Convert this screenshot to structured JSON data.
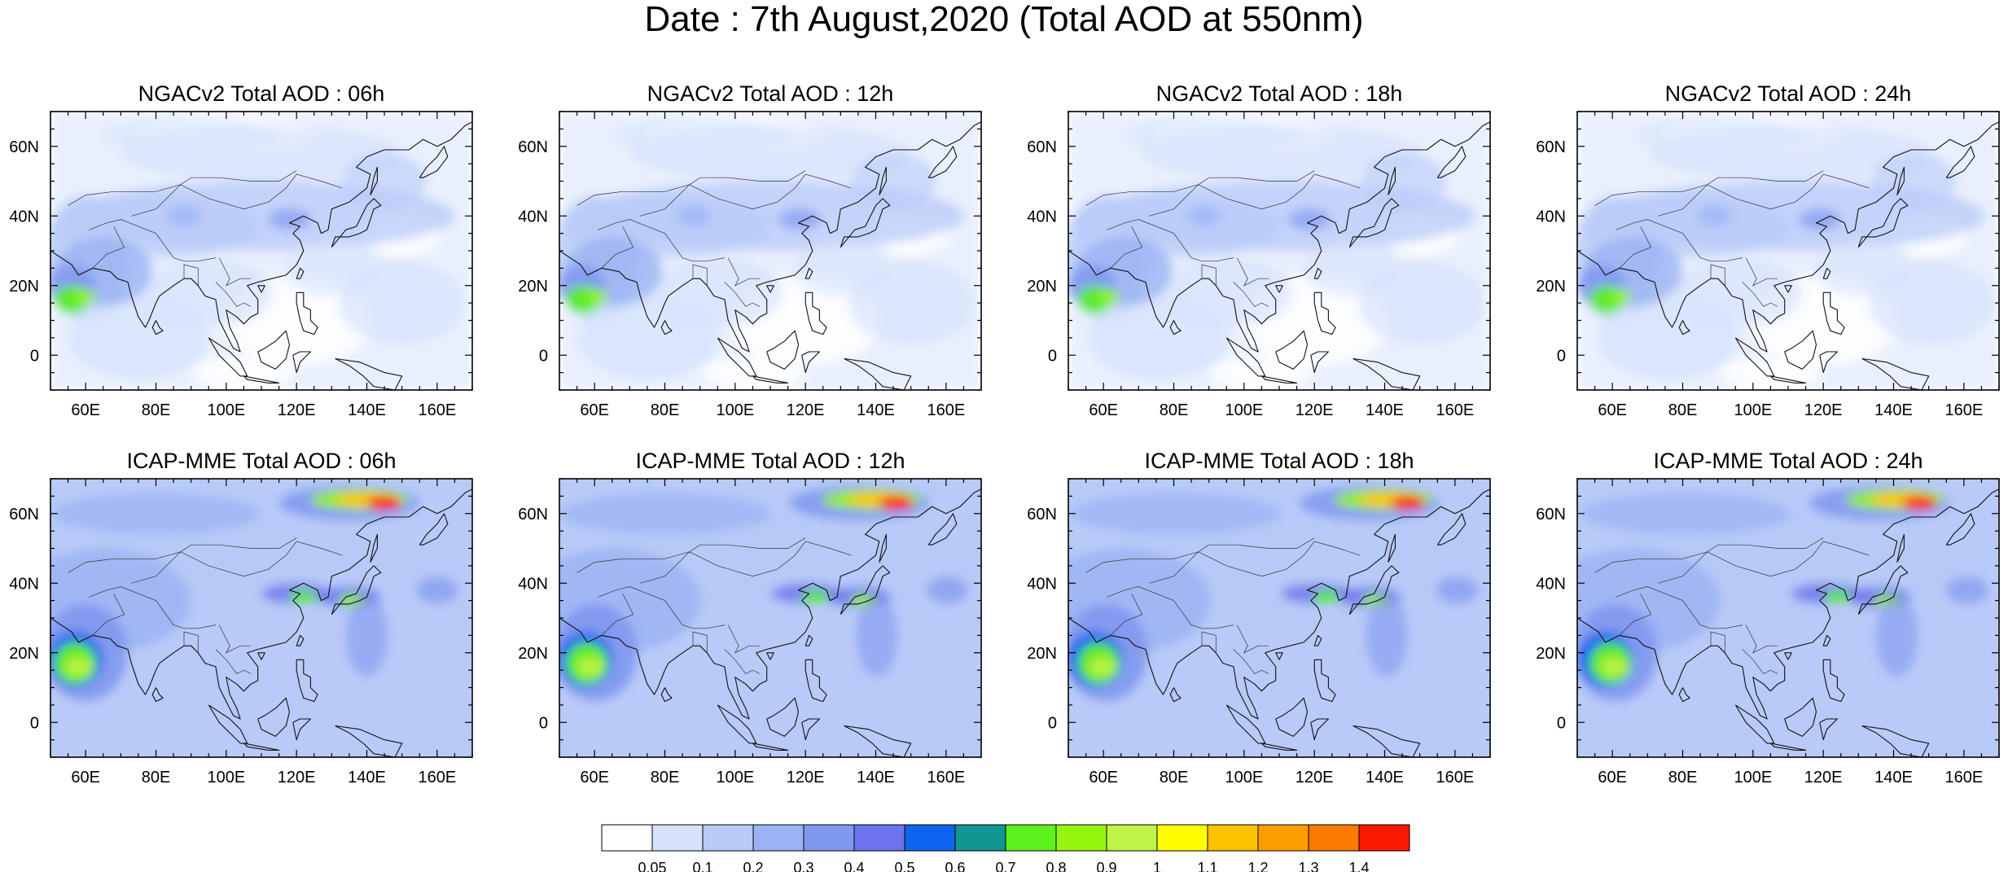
{
  "title": "Date : 7th August,2020 (Total AOD at 550nm)",
  "panels": [
    {
      "title": "NGACv2 Total AOD : 06h",
      "model": "NGACv2",
      "lead": "06h"
    },
    {
      "title": "NGACv2 Total AOD : 12h",
      "model": "NGACv2",
      "lead": "12h"
    },
    {
      "title": "NGACv2 Total AOD : 18h",
      "model": "NGACv2",
      "lead": "18h"
    },
    {
      "title": "NGACv2 Total AOD : 24h",
      "model": "NGACv2",
      "lead": "24h"
    },
    {
      "title": "ICAP-MME Total AOD : 06h",
      "model": "ICAP-MME",
      "lead": "06h"
    },
    {
      "title": "ICAP-MME Total AOD : 12h",
      "model": "ICAP-MME",
      "lead": "12h"
    },
    {
      "title": "ICAP-MME Total AOD : 18h",
      "model": "ICAP-MME",
      "lead": "18h"
    },
    {
      "title": "ICAP-MME Total AOD : 24h",
      "model": "ICAP-MME",
      "lead": "24h"
    }
  ],
  "axes": {
    "x_ticks": [
      "60E",
      "80E",
      "100E",
      "120E",
      "140E",
      "160E"
    ],
    "x_tick_values": [
      60,
      80,
      100,
      120,
      140,
      160
    ],
    "y_ticks": [
      "60N",
      "40N",
      "20N",
      "0"
    ],
    "y_tick_values": [
      60,
      40,
      20,
      0
    ],
    "lon_range": [
      50,
      170
    ],
    "lat_range": [
      -10,
      70
    ]
  },
  "colorbar": {
    "labels": [
      "0.05",
      "0.1",
      "0.2",
      "0.3",
      "0.4",
      "0.5",
      "0.6",
      "0.7",
      "0.8",
      "0.9",
      "1",
      "1.1",
      "1.2",
      "1.3",
      "1.4"
    ],
    "colors": [
      "#ffffff",
      "#d7e3fc",
      "#b8caf8",
      "#9bb3f4",
      "#8198f0",
      "#6b74ee",
      "#0d63ee",
      "#0f9794",
      "#5cf01c",
      "#96f50e",
      "#bdf446",
      "#fffd00",
      "#fdc300",
      "#fc9e00",
      "#fb7a00",
      "#fb1800"
    ]
  }
}
